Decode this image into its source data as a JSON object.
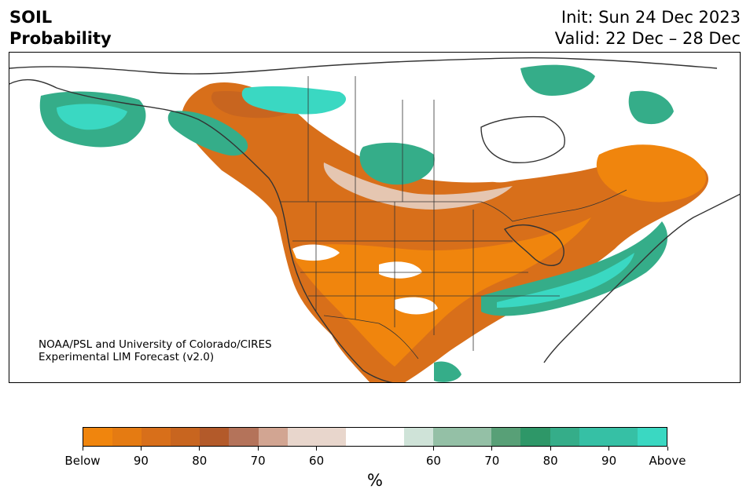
{
  "header": {
    "title_line1": "SOIL",
    "title_line2": "Probability",
    "init": "Init: Sun 24 Dec 2023",
    "valid": "Valid: 22 Dec – 28 Dec"
  },
  "credit": {
    "line1": "NOAA/PSL and University of Colorado/CIRES",
    "line2": "Experimental LIM Forecast (v2.0)"
  },
  "colorbar": {
    "unit": "%",
    "colors": [
      "#f0850d",
      "#e57b12",
      "#d86f1a",
      "#c8651f",
      "#b35a2a",
      "#b4735a",
      "#d2a592",
      "#e8d6cc",
      "#ffffff",
      "#ffffff",
      "#cfe3d8",
      "#94c0a6",
      "#58a077",
      "#2e9768",
      "#35ad89",
      "#36c0a5",
      "#3ad8c2"
    ],
    "tick_labels": [
      "Below",
      "90",
      "80",
      "70",
      "60",
      "60",
      "70",
      "80",
      "90",
      "Above"
    ]
  },
  "map": {
    "region": "North America",
    "colors": {
      "below_strong": "#f0850d",
      "below_mid": "#c8651f",
      "below_weak": "#e8d6cc",
      "above_weak": "#cfe3d8",
      "above_mid": "#35ad89",
      "above_strong": "#3ad8c2",
      "border": "#333333"
    }
  }
}
